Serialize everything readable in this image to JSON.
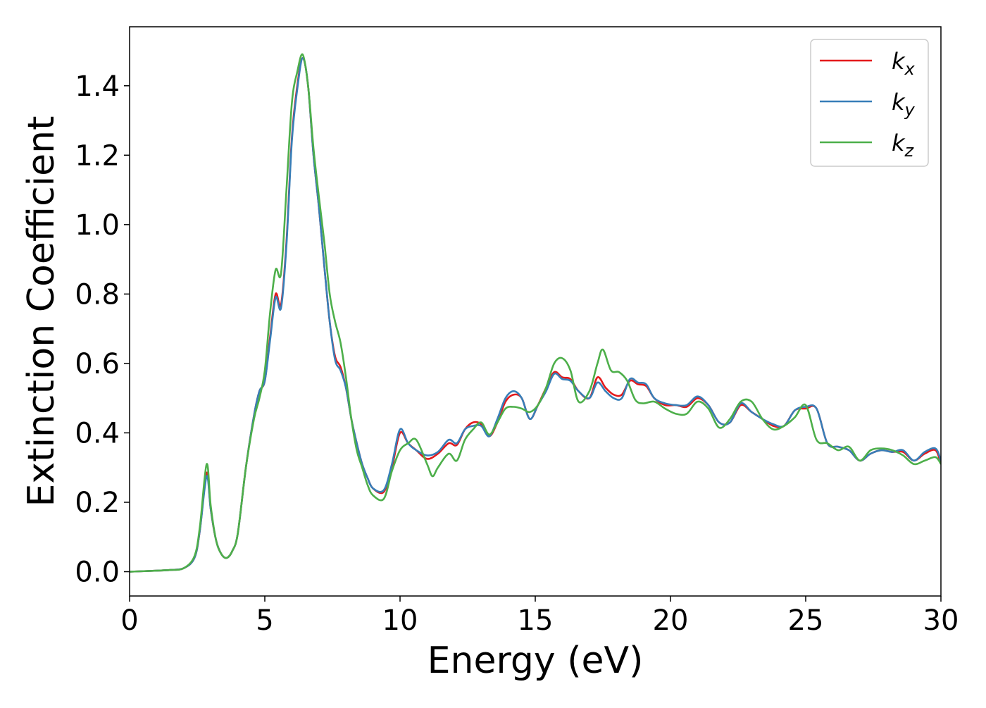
{
  "chart_data": {
    "type": "line",
    "title": "",
    "xlabel": "Energy (eV)",
    "ylabel": "Extinction Coefficient",
    "xlim": [
      0,
      30
    ],
    "ylim": [
      -0.07,
      1.57
    ],
    "xticks": [
      0,
      5,
      10,
      15,
      20,
      25,
      30
    ],
    "xtick_labels": [
      "0",
      "5",
      "10",
      "15",
      "20",
      "25",
      "30"
    ],
    "yticks": [
      0.0,
      0.2,
      0.4,
      0.6,
      0.8,
      1.0,
      1.2,
      1.4
    ],
    "ytick_labels": [
      "0.0",
      "0.2",
      "0.4",
      "0.6",
      "0.8",
      "1.0",
      "1.2",
      "1.4"
    ],
    "grid": false,
    "legend": {
      "placement": "top-right"
    },
    "series": [
      {
        "name": "k_x",
        "label_main": "k",
        "label_sub": "x",
        "color": "#e41a1c",
        "x": [
          0,
          1,
          1.5,
          2,
          2.4,
          2.6,
          2.85,
          3.0,
          3.2,
          3.4,
          3.6,
          3.8,
          4.0,
          4.3,
          4.6,
          4.8,
          5.0,
          5.2,
          5.4,
          5.6,
          5.8,
          6.0,
          6.2,
          6.4,
          6.6,
          6.8,
          7.0,
          7.2,
          7.4,
          7.6,
          7.8,
          8.0,
          8.2,
          8.4,
          8.6,
          8.8,
          9.0,
          9.4,
          9.7,
          10.0,
          10.3,
          10.6,
          11.0,
          11.4,
          11.8,
          12.1,
          12.4,
          12.7,
          13.0,
          13.3,
          13.6,
          13.9,
          14.2,
          14.5,
          14.8,
          15.1,
          15.4,
          15.7,
          16.0,
          16.3,
          16.6,
          17.0,
          17.3,
          17.6,
          17.9,
          18.2,
          18.5,
          18.8,
          19.1,
          19.4,
          19.8,
          20.2,
          20.6,
          21.0,
          21.4,
          21.8,
          22.2,
          22.6,
          23.0,
          23.4,
          23.8,
          24.2,
          24.6,
          25.0,
          25.4,
          25.8,
          26.2,
          26.6,
          27.0,
          27.4,
          27.8,
          28.2,
          28.6,
          29.0,
          29.4,
          29.8,
          30.0
        ],
        "values": [
          0.0,
          0.003,
          0.005,
          0.01,
          0.04,
          0.12,
          0.285,
          0.18,
          0.09,
          0.05,
          0.04,
          0.06,
          0.11,
          0.3,
          0.45,
          0.52,
          0.55,
          0.68,
          0.8,
          0.77,
          0.95,
          1.25,
          1.4,
          1.48,
          1.4,
          1.2,
          1.05,
          0.88,
          0.72,
          0.62,
          0.59,
          0.53,
          0.44,
          0.37,
          0.31,
          0.27,
          0.24,
          0.23,
          0.3,
          0.4,
          0.37,
          0.35,
          0.325,
          0.34,
          0.37,
          0.365,
          0.41,
          0.43,
          0.425,
          0.39,
          0.43,
          0.49,
          0.51,
          0.5,
          0.44,
          0.48,
          0.53,
          0.575,
          0.56,
          0.555,
          0.52,
          0.5,
          0.56,
          0.53,
          0.51,
          0.51,
          0.55,
          0.54,
          0.535,
          0.5,
          0.48,
          0.48,
          0.475,
          0.5,
          0.48,
          0.43,
          0.43,
          0.48,
          0.46,
          0.44,
          0.42,
          0.42,
          0.465,
          0.47,
          0.47,
          0.37,
          0.36,
          0.35,
          0.32,
          0.34,
          0.35,
          0.345,
          0.345,
          0.32,
          0.34,
          0.35,
          0.31
        ]
      },
      {
        "name": "k_y",
        "label_main": "k",
        "label_sub": "y",
        "color": "#377eb8",
        "x": [
          0,
          1,
          1.5,
          2,
          2.4,
          2.6,
          2.85,
          3.0,
          3.2,
          3.4,
          3.6,
          3.8,
          4.0,
          4.3,
          4.6,
          4.8,
          5.0,
          5.2,
          5.4,
          5.6,
          5.8,
          6.0,
          6.2,
          6.4,
          6.6,
          6.8,
          7.0,
          7.2,
          7.4,
          7.6,
          7.8,
          8.0,
          8.2,
          8.4,
          8.6,
          8.8,
          9.0,
          9.4,
          9.7,
          10.0,
          10.3,
          10.6,
          11.0,
          11.4,
          11.8,
          12.1,
          12.4,
          12.7,
          13.0,
          13.3,
          13.6,
          13.9,
          14.2,
          14.5,
          14.8,
          15.1,
          15.4,
          15.7,
          16.0,
          16.3,
          16.6,
          17.0,
          17.3,
          17.6,
          17.9,
          18.2,
          18.5,
          18.8,
          19.1,
          19.4,
          19.8,
          20.2,
          20.6,
          21.0,
          21.4,
          21.8,
          22.2,
          22.6,
          23.0,
          23.4,
          23.8,
          24.2,
          24.6,
          25.0,
          25.4,
          25.8,
          26.2,
          26.6,
          27.0,
          27.4,
          27.8,
          28.2,
          28.6,
          29.0,
          29.4,
          29.8,
          30.0
        ],
        "values": [
          0.0,
          0.003,
          0.005,
          0.01,
          0.04,
          0.12,
          0.275,
          0.18,
          0.09,
          0.05,
          0.04,
          0.06,
          0.11,
          0.3,
          0.45,
          0.52,
          0.55,
          0.67,
          0.79,
          0.76,
          0.94,
          1.24,
          1.39,
          1.48,
          1.4,
          1.2,
          1.05,
          0.88,
          0.72,
          0.61,
          0.58,
          0.53,
          0.44,
          0.37,
          0.31,
          0.27,
          0.24,
          0.235,
          0.31,
          0.41,
          0.37,
          0.35,
          0.335,
          0.345,
          0.38,
          0.37,
          0.41,
          0.42,
          0.42,
          0.39,
          0.44,
          0.5,
          0.52,
          0.5,
          0.44,
          0.48,
          0.52,
          0.57,
          0.555,
          0.55,
          0.52,
          0.5,
          0.545,
          0.52,
          0.5,
          0.5,
          0.555,
          0.545,
          0.54,
          0.5,
          0.485,
          0.48,
          0.48,
          0.505,
          0.48,
          0.43,
          0.43,
          0.485,
          0.46,
          0.44,
          0.425,
          0.42,
          0.465,
          0.475,
          0.47,
          0.37,
          0.36,
          0.35,
          0.32,
          0.34,
          0.35,
          0.345,
          0.35,
          0.32,
          0.345,
          0.355,
          0.32
        ]
      },
      {
        "name": "k_z",
        "label_main": "k",
        "label_sub": "z",
        "color": "#4daf4a",
        "x": [
          0,
          1,
          1.5,
          2,
          2.4,
          2.6,
          2.85,
          3.0,
          3.2,
          3.4,
          3.6,
          3.8,
          4.0,
          4.3,
          4.6,
          4.8,
          5.0,
          5.2,
          5.4,
          5.6,
          5.8,
          6.0,
          6.2,
          6.4,
          6.6,
          6.8,
          7.0,
          7.2,
          7.4,
          7.6,
          7.8,
          8.0,
          8.2,
          8.4,
          8.6,
          8.8,
          9.0,
          9.4,
          9.7,
          10.0,
          10.3,
          10.6,
          11.0,
          11.2,
          11.4,
          11.8,
          12.1,
          12.4,
          12.7,
          13.0,
          13.3,
          13.6,
          13.9,
          14.2,
          14.5,
          14.8,
          15.1,
          15.4,
          15.7,
          16.0,
          16.3,
          16.6,
          17.0,
          17.3,
          17.5,
          17.8,
          18.1,
          18.4,
          18.7,
          19.0,
          19.4,
          19.8,
          20.2,
          20.6,
          21.0,
          21.4,
          21.8,
          22.2,
          22.6,
          23.0,
          23.4,
          23.8,
          24.2,
          24.6,
          25.0,
          25.4,
          25.8,
          26.2,
          26.6,
          27.0,
          27.4,
          27.8,
          28.2,
          28.6,
          29.0,
          29.4,
          29.8,
          30.0
        ],
        "values": [
          0.0,
          0.003,
          0.005,
          0.01,
          0.045,
          0.13,
          0.31,
          0.19,
          0.09,
          0.05,
          0.04,
          0.06,
          0.11,
          0.3,
          0.44,
          0.5,
          0.58,
          0.75,
          0.87,
          0.86,
          1.1,
          1.35,
          1.44,
          1.49,
          1.4,
          1.22,
          1.08,
          0.95,
          0.8,
          0.72,
          0.66,
          0.56,
          0.44,
          0.35,
          0.3,
          0.25,
          0.22,
          0.21,
          0.29,
          0.35,
          0.37,
          0.38,
          0.31,
          0.275,
          0.3,
          0.34,
          0.32,
          0.38,
          0.41,
          0.43,
          0.395,
          0.43,
          0.47,
          0.475,
          0.47,
          0.46,
          0.48,
          0.53,
          0.6,
          0.615,
          0.58,
          0.49,
          0.52,
          0.6,
          0.64,
          0.58,
          0.575,
          0.55,
          0.495,
          0.485,
          0.49,
          0.47,
          0.455,
          0.455,
          0.49,
          0.47,
          0.415,
          0.44,
          0.49,
          0.49,
          0.44,
          0.41,
          0.42,
          0.445,
          0.48,
          0.38,
          0.37,
          0.35,
          0.36,
          0.32,
          0.35,
          0.355,
          0.35,
          0.335,
          0.31,
          0.32,
          0.33,
          0.31
        ]
      }
    ]
  }
}
